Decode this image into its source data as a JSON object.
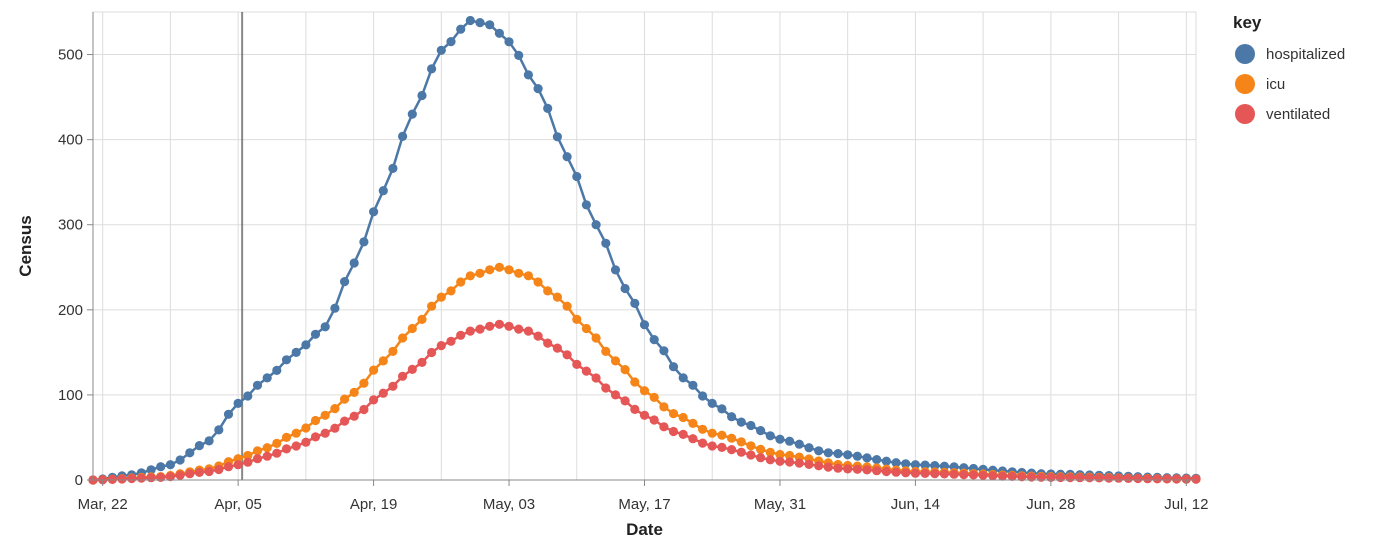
{
  "chart_data": {
    "type": "line",
    "x_type": "date",
    "xlabel": "Date",
    "ylabel": "Census",
    "x_ticks": [
      {
        "date": "2020-03-22",
        "label": "Mar, 22"
      },
      {
        "date": "2020-04-05",
        "label": "Apr, 05"
      },
      {
        "date": "2020-04-19",
        "label": "Apr, 19"
      },
      {
        "date": "2020-05-03",
        "label": "May, 03"
      },
      {
        "date": "2020-05-17",
        "label": "May, 17"
      },
      {
        "date": "2020-05-31",
        "label": "May, 31"
      },
      {
        "date": "2020-06-14",
        "label": "Jun, 14"
      },
      {
        "date": "2020-06-28",
        "label": "Jun, 28"
      },
      {
        "date": "2020-07-12",
        "label": "Jul, 12"
      }
    ],
    "y_ticks": [
      0,
      100,
      200,
      300,
      400,
      500
    ],
    "xlim": [
      "2020-03-21",
      "2020-07-13"
    ],
    "ylim": [
      0,
      550
    ],
    "grid": true,
    "rule_date": "2020-04-05",
    "legend": {
      "title": "key",
      "position": "right"
    },
    "series": [
      {
        "name": "hospitalized",
        "color": "#4c78a8",
        "points": [
          [
            "2020-03-21",
            0
          ],
          [
            "2020-03-25",
            6
          ],
          [
            "2020-03-29",
            18
          ],
          [
            "2020-04-02",
            46
          ],
          [
            "2020-04-05",
            90
          ],
          [
            "2020-04-08",
            120
          ],
          [
            "2020-04-11",
            150
          ],
          [
            "2020-04-14",
            180
          ],
          [
            "2020-04-17",
            255
          ],
          [
            "2020-04-20",
            340
          ],
          [
            "2020-04-23",
            430
          ],
          [
            "2020-04-26",
            505
          ],
          [
            "2020-04-29",
            540
          ],
          [
            "2020-05-01",
            535
          ],
          [
            "2020-05-03",
            515
          ],
          [
            "2020-05-06",
            460
          ],
          [
            "2020-05-09",
            380
          ],
          [
            "2020-05-12",
            300
          ],
          [
            "2020-05-15",
            225
          ],
          [
            "2020-05-18",
            165
          ],
          [
            "2020-05-21",
            120
          ],
          [
            "2020-05-24",
            90
          ],
          [
            "2020-05-27",
            68
          ],
          [
            "2020-05-31",
            48
          ],
          [
            "2020-06-05",
            32
          ],
          [
            "2020-06-14",
            18
          ],
          [
            "2020-06-28",
            7
          ],
          [
            "2020-07-13",
            2
          ]
        ]
      },
      {
        "name": "icu",
        "color": "#f58518",
        "points": [
          [
            "2020-03-21",
            0
          ],
          [
            "2020-03-28",
            4
          ],
          [
            "2020-04-02",
            13
          ],
          [
            "2020-04-05",
            25
          ],
          [
            "2020-04-08",
            38
          ],
          [
            "2020-04-11",
            55
          ],
          [
            "2020-04-14",
            76
          ],
          [
            "2020-04-17",
            103
          ],
          [
            "2020-04-20",
            140
          ],
          [
            "2020-04-23",
            178
          ],
          [
            "2020-04-26",
            215
          ],
          [
            "2020-04-29",
            240
          ],
          [
            "2020-05-02",
            250
          ],
          [
            "2020-05-05",
            240
          ],
          [
            "2020-05-08",
            215
          ],
          [
            "2020-05-11",
            178
          ],
          [
            "2020-05-14",
            140
          ],
          [
            "2020-05-17",
            105
          ],
          [
            "2020-05-20",
            78
          ],
          [
            "2020-05-24",
            55
          ],
          [
            "2020-05-31",
            30
          ],
          [
            "2020-06-07",
            17
          ],
          [
            "2020-06-14",
            10
          ],
          [
            "2020-06-28",
            4
          ],
          [
            "2020-07-13",
            1
          ]
        ]
      },
      {
        "name": "ventilated",
        "color": "#e45756",
        "points": [
          [
            "2020-03-21",
            0
          ],
          [
            "2020-03-28",
            3
          ],
          [
            "2020-04-02",
            10
          ],
          [
            "2020-04-05",
            18
          ],
          [
            "2020-04-08",
            28
          ],
          [
            "2020-04-11",
            40
          ],
          [
            "2020-04-14",
            55
          ],
          [
            "2020-04-17",
            75
          ],
          [
            "2020-04-20",
            102
          ],
          [
            "2020-04-23",
            130
          ],
          [
            "2020-04-26",
            158
          ],
          [
            "2020-04-29",
            175
          ],
          [
            "2020-05-02",
            183
          ],
          [
            "2020-05-05",
            175
          ],
          [
            "2020-05-08",
            155
          ],
          [
            "2020-05-11",
            128
          ],
          [
            "2020-05-14",
            100
          ],
          [
            "2020-05-17",
            76
          ],
          [
            "2020-05-20",
            57
          ],
          [
            "2020-05-24",
            40
          ],
          [
            "2020-05-31",
            22
          ],
          [
            "2020-06-07",
            13
          ],
          [
            "2020-06-14",
            8
          ],
          [
            "2020-06-28",
            3
          ],
          [
            "2020-07-13",
            1
          ]
        ]
      }
    ]
  }
}
